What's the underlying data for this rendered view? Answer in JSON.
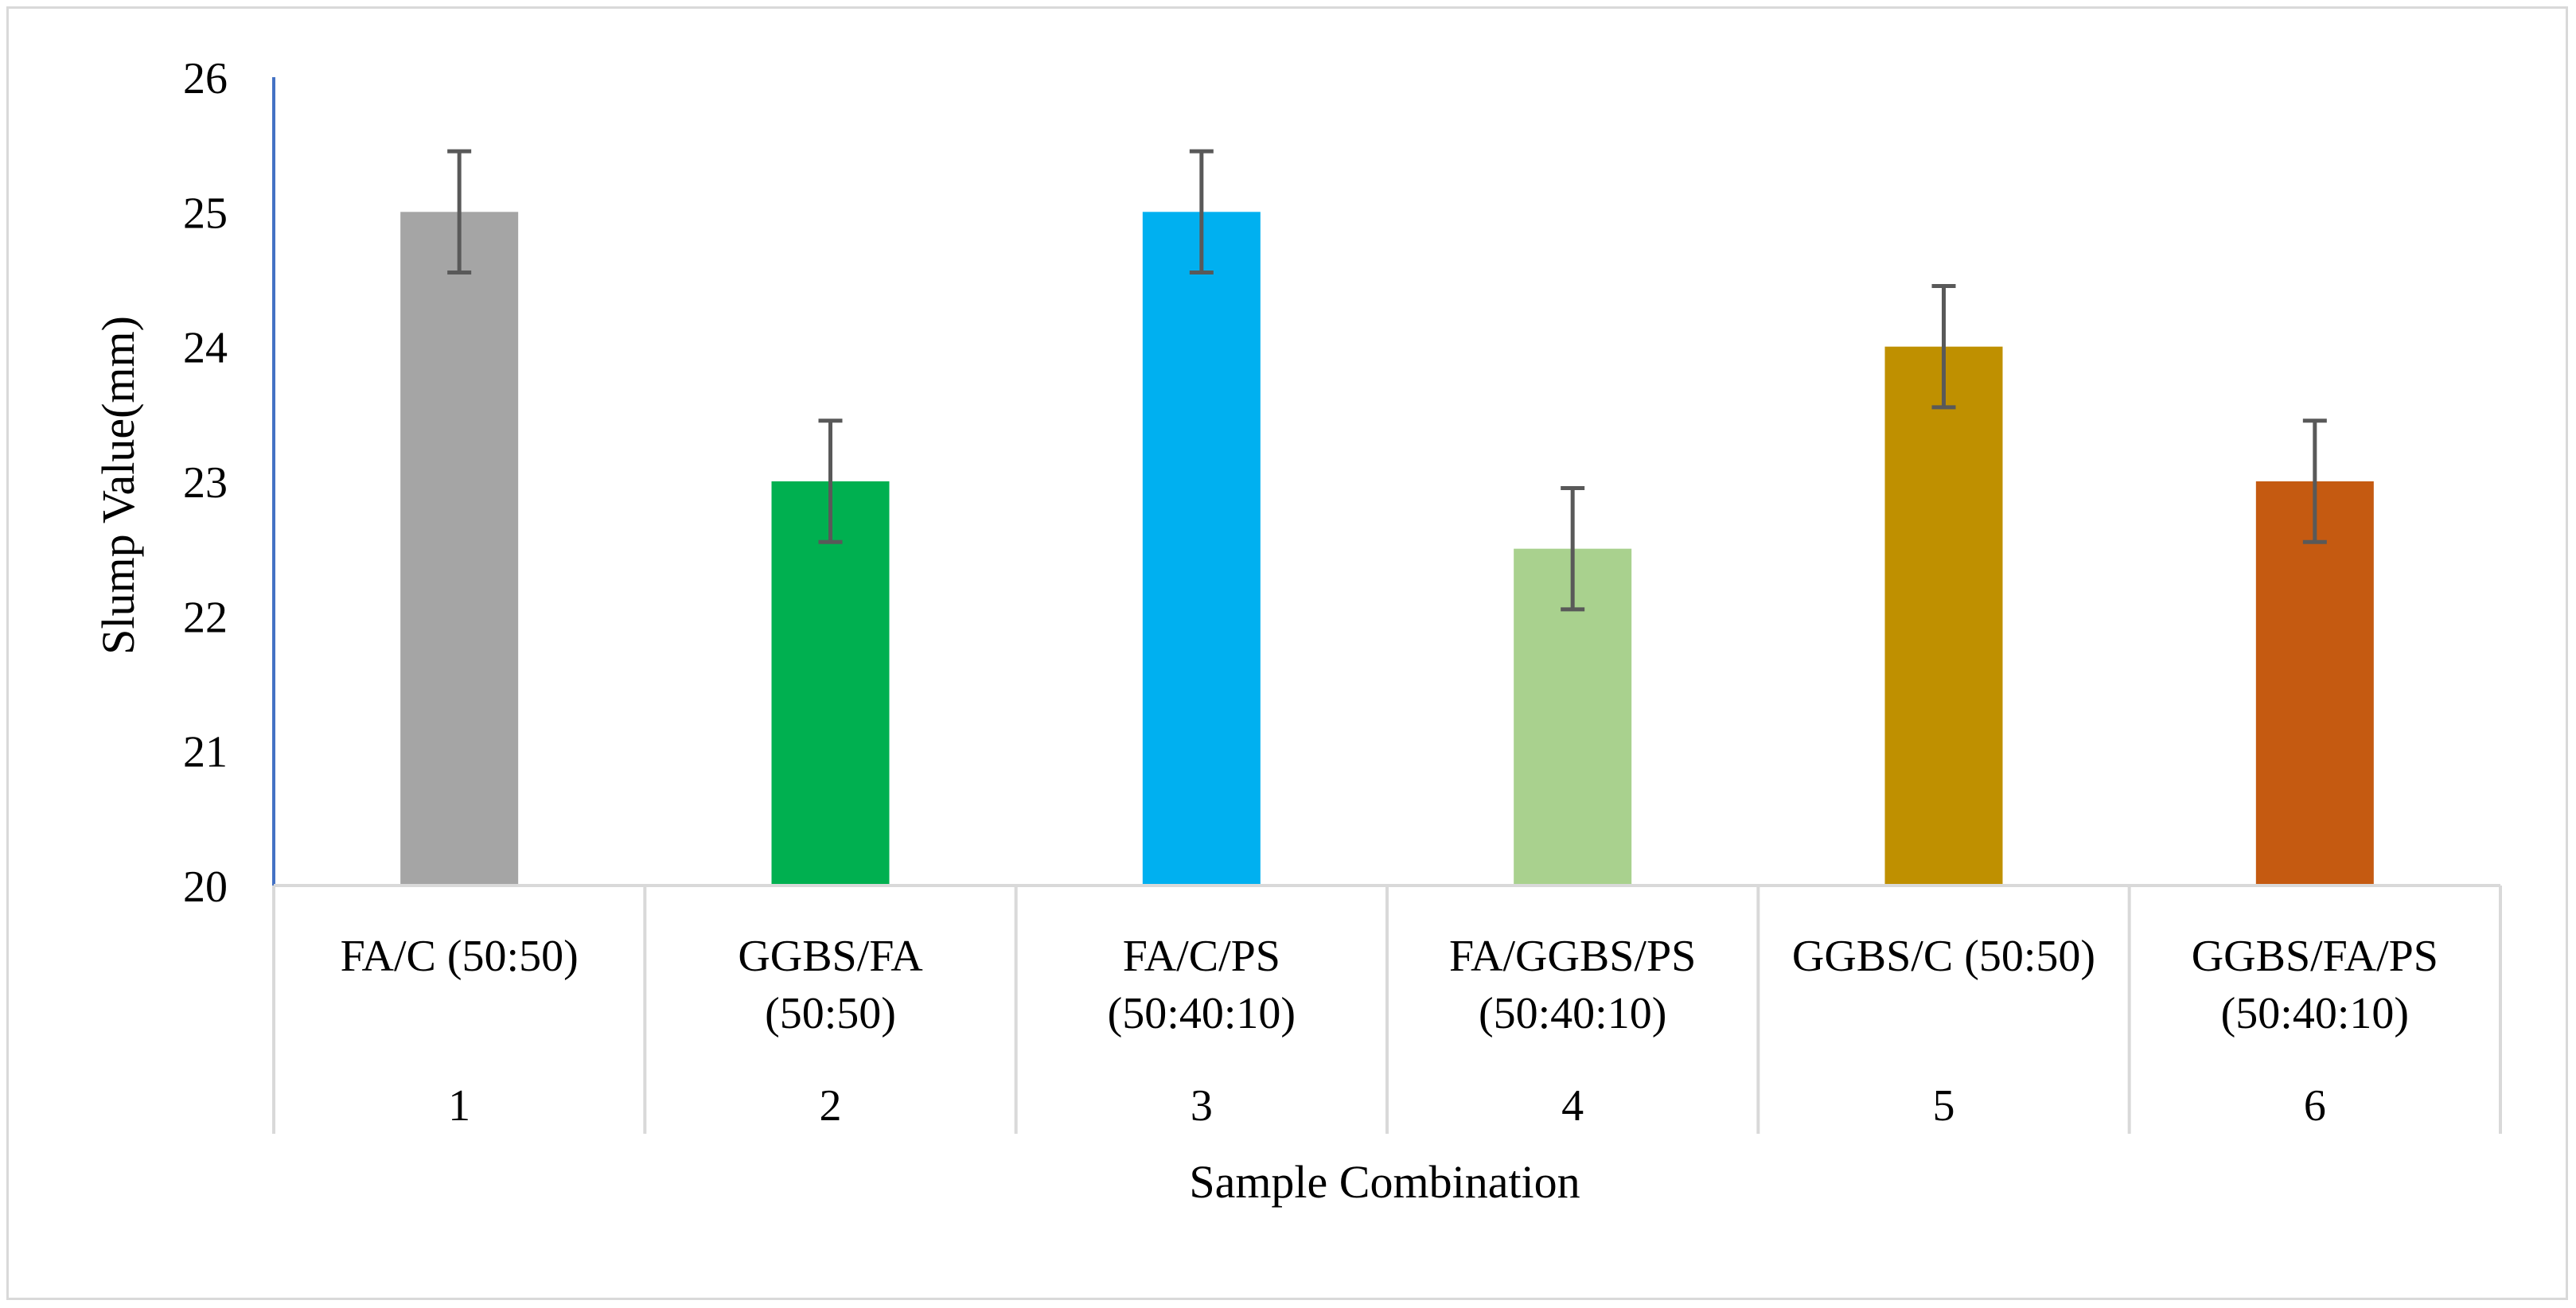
{
  "chart_data": {
    "type": "bar",
    "title": "",
    "xlabel": "Sample Combination",
    "ylabel": "Slump Value(mm)",
    "ylim": [
      20,
      26
    ],
    "yticks": [
      "20",
      "21",
      "22",
      "23",
      "24",
      "25",
      "26"
    ],
    "grid": false,
    "legend": "none",
    "categories": [
      {
        "index": "1",
        "label_lines": [
          "FA/C (50:50)"
        ]
      },
      {
        "index": "2",
        "label_lines": [
          "GGBS/FA",
          "(50:50)"
        ]
      },
      {
        "index": "3",
        "label_lines": [
          "FA/C/PS",
          "(50:40:10)"
        ]
      },
      {
        "index": "4",
        "label_lines": [
          "FA/GGBS/PS",
          "(50:40:10)"
        ]
      },
      {
        "index": "5",
        "label_lines": [
          "GGBS/C (50:50)"
        ]
      },
      {
        "index": "6",
        "label_lines": [
          "GGBS/FA/PS",
          "(50:40:10)"
        ]
      }
    ],
    "values": [
      25.0,
      23.0,
      25.0,
      22.5,
      24.0,
      23.0
    ],
    "error": [
      0.45,
      0.45,
      0.45,
      0.45,
      0.45,
      0.45
    ],
    "colors": [
      "#a5a5a5",
      "#00b050",
      "#00b0f0",
      "#a9d18e",
      "#bf9000",
      "#c55a11"
    ]
  },
  "style": {
    "y_axis_color": "#4472c4",
    "axis_color": "#d9d9d9",
    "error_bar_color": "#595959"
  }
}
